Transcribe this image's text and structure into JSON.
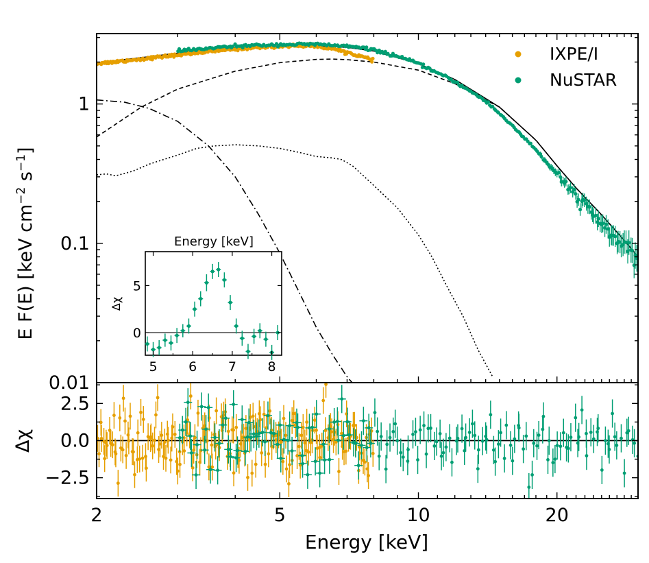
{
  "chart_data": [
    {
      "type": "scatter",
      "panel": "top spectrum",
      "xscale": "log",
      "yscale": "log",
      "xlim": [
        2,
        30
      ],
      "ylim": [
        0.01,
        3.2
      ],
      "ylabel": "E F(E) [keV cm",
      "ylabel_sup1": "−2",
      "ylabel_mid": " s",
      "ylabel_sup2": "−1",
      "ylabel_end": "]",
      "yticks": [
        {
          "value": 0.01,
          "label": "0.01"
        },
        {
          "value": 0.1,
          "label": "0.1"
        },
        {
          "value": 1,
          "label": "1"
        }
      ],
      "legend_position": "top-right",
      "legend": [
        {
          "label": "IXPE/I",
          "color": "#E69F00"
        },
        {
          "label": "NuSTAR",
          "color": "#009E73"
        }
      ],
      "series": [
        {
          "name": "IXPE/I",
          "color": "#E69F00",
          "x_range": [
            2,
            8
          ],
          "x": [
            2.0,
            2.5,
            3.0,
            3.5,
            4.0,
            4.5,
            5.0,
            5.5,
            6.0,
            6.5,
            7.0,
            7.5,
            8.0
          ],
          "y": [
            1.95,
            2.1,
            2.25,
            2.38,
            2.48,
            2.55,
            2.6,
            2.62,
            2.6,
            2.5,
            2.35,
            2.2,
            2.05
          ]
        },
        {
          "name": "NuSTAR",
          "color": "#009E73",
          "x_range": [
            3,
            30
          ],
          "x": [
            3,
            4,
            5,
            6,
            7,
            8,
            9,
            10,
            12,
            14,
            16,
            18,
            20,
            22,
            24,
            26,
            28,
            30
          ],
          "y": [
            2.4,
            2.6,
            2.67,
            2.68,
            2.6,
            2.45,
            2.2,
            1.95,
            1.45,
            1.05,
            0.7,
            0.47,
            0.31,
            0.22,
            0.16,
            0.12,
            0.095,
            0.075
          ]
        }
      ],
      "model_components": [
        {
          "name": "total model",
          "style": "solid",
          "x": [
            2,
            2.5,
            3,
            4,
            5,
            6,
            7,
            8,
            10,
            12,
            15,
            18,
            20,
            22,
            25,
            28,
            30
          ],
          "y": [
            1.98,
            2.15,
            2.32,
            2.55,
            2.62,
            2.62,
            2.55,
            2.4,
            1.95,
            1.5,
            0.95,
            0.55,
            0.36,
            0.25,
            0.16,
            0.105,
            0.08
          ]
        },
        {
          "name": "component dashed",
          "style": "dashed",
          "x": [
            2,
            2.5,
            3,
            4,
            5,
            6,
            6.5,
            7,
            8,
            10,
            12,
            15,
            18,
            20,
            22,
            25,
            28,
            30
          ],
          "y": [
            0.58,
            0.95,
            1.28,
            1.72,
            1.98,
            2.09,
            2.1,
            2.08,
            2.0,
            1.75,
            1.4,
            0.95,
            0.55,
            0.36,
            0.25,
            0.16,
            0.105,
            0.08
          ]
        },
        {
          "name": "component dash-dot",
          "style": "dashdot",
          "x": [
            2,
            2.3,
            2.6,
            3,
            3.5,
            4,
            4.5,
            5,
            5.5,
            6,
            6.5,
            7,
            7.5
          ],
          "y": [
            1.07,
            1.03,
            0.93,
            0.75,
            0.5,
            0.3,
            0.16,
            0.085,
            0.045,
            0.025,
            0.016,
            0.011,
            0.0085
          ]
        },
        {
          "name": "component dotted",
          "style": "dotted",
          "x": [
            2,
            2.1,
            2.2,
            2.4,
            2.6,
            2.8,
            3.0,
            3.3,
            3.6,
            4.0,
            4.5,
            5.0,
            5.5,
            6.0,
            6.5,
            6.8,
            7.2,
            8,
            9,
            10,
            10.7,
            11.5,
            12.5,
            13.5,
            14.5
          ],
          "y": [
            0.31,
            0.315,
            0.305,
            0.33,
            0.37,
            0.4,
            0.43,
            0.48,
            0.5,
            0.51,
            0.5,
            0.48,
            0.45,
            0.42,
            0.41,
            0.4,
            0.36,
            0.26,
            0.18,
            0.115,
            0.08,
            0.05,
            0.03,
            0.017,
            0.011
          ]
        }
      ],
      "inset": {
        "type": "scatter",
        "title": "Energy [keV]",
        "ylabel": "Δχ",
        "xlim": [
          4.8,
          8.25
        ],
        "ylim": [
          -2.4,
          8.6
        ],
        "xticks": [
          {
            "value": 5,
            "label": "5"
          },
          {
            "value": 6,
            "label": "6"
          },
          {
            "value": 7,
            "label": "7"
          },
          {
            "value": 8,
            "label": "8"
          }
        ],
        "yticks": [
          {
            "value": 0,
            "label": "0"
          },
          {
            "value": 5,
            "label": "5"
          }
        ],
        "color": "#009E73",
        "x": [
          4.85,
          5.0,
          5.15,
          5.3,
          5.45,
          5.6,
          5.75,
          5.9,
          6.05,
          6.2,
          6.35,
          6.5,
          6.65,
          6.8,
          6.95,
          7.1,
          7.25,
          7.4,
          7.55,
          7.7,
          7.85,
          8.0,
          8.15
        ],
        "y": [
          -1.2,
          -1.8,
          -1.6,
          -0.8,
          -1.1,
          -0.3,
          0.2,
          0.7,
          2.5,
          3.6,
          5.3,
          6.5,
          6.7,
          5.6,
          3.2,
          0.7,
          -0.6,
          -2.0,
          -0.4,
          0.2,
          -0.7,
          -2.1,
          0.0
        ],
        "err": [
          0.8,
          0.8,
          0.8,
          0.7,
          0.8,
          0.8,
          0.7,
          0.8,
          0.8,
          0.8,
          0.9,
          0.8,
          0.8,
          0.8,
          0.8,
          0.8,
          0.8,
          0.8,
          0.8,
          0.8,
          0.8,
          0.8,
          0.8
        ]
      }
    },
    {
      "type": "scatter",
      "panel": "bottom residuals",
      "xscale": "log",
      "xlim": [
        2,
        30
      ],
      "ylim": [
        -3.9,
        3.9
      ],
      "xlabel": "Energy [keV]",
      "ylabel": "Δχ",
      "xticks": [
        {
          "value": 2,
          "label": "2"
        },
        {
          "value": 5,
          "label": "5"
        },
        {
          "value": 10,
          "label": "10"
        },
        {
          "value": 20,
          "label": "20"
        }
      ],
      "yticks": [
        {
          "value": -2.5,
          "label": "−2.5"
        },
        {
          "value": 0,
          "label": "0.0"
        },
        {
          "value": 2.5,
          "label": "2.5"
        }
      ],
      "series": [
        {
          "name": "IXPE/I",
          "color": "#E69F00",
          "x_range": [
            2,
            8
          ],
          "y_scatter_sd": 1.2,
          "error": 0.9
        },
        {
          "name": "NuSTAR",
          "color": "#009E73",
          "x_range": [
            3,
            30
          ],
          "y_scatter_sd": 1.1,
          "error": 0.95
        }
      ]
    }
  ]
}
